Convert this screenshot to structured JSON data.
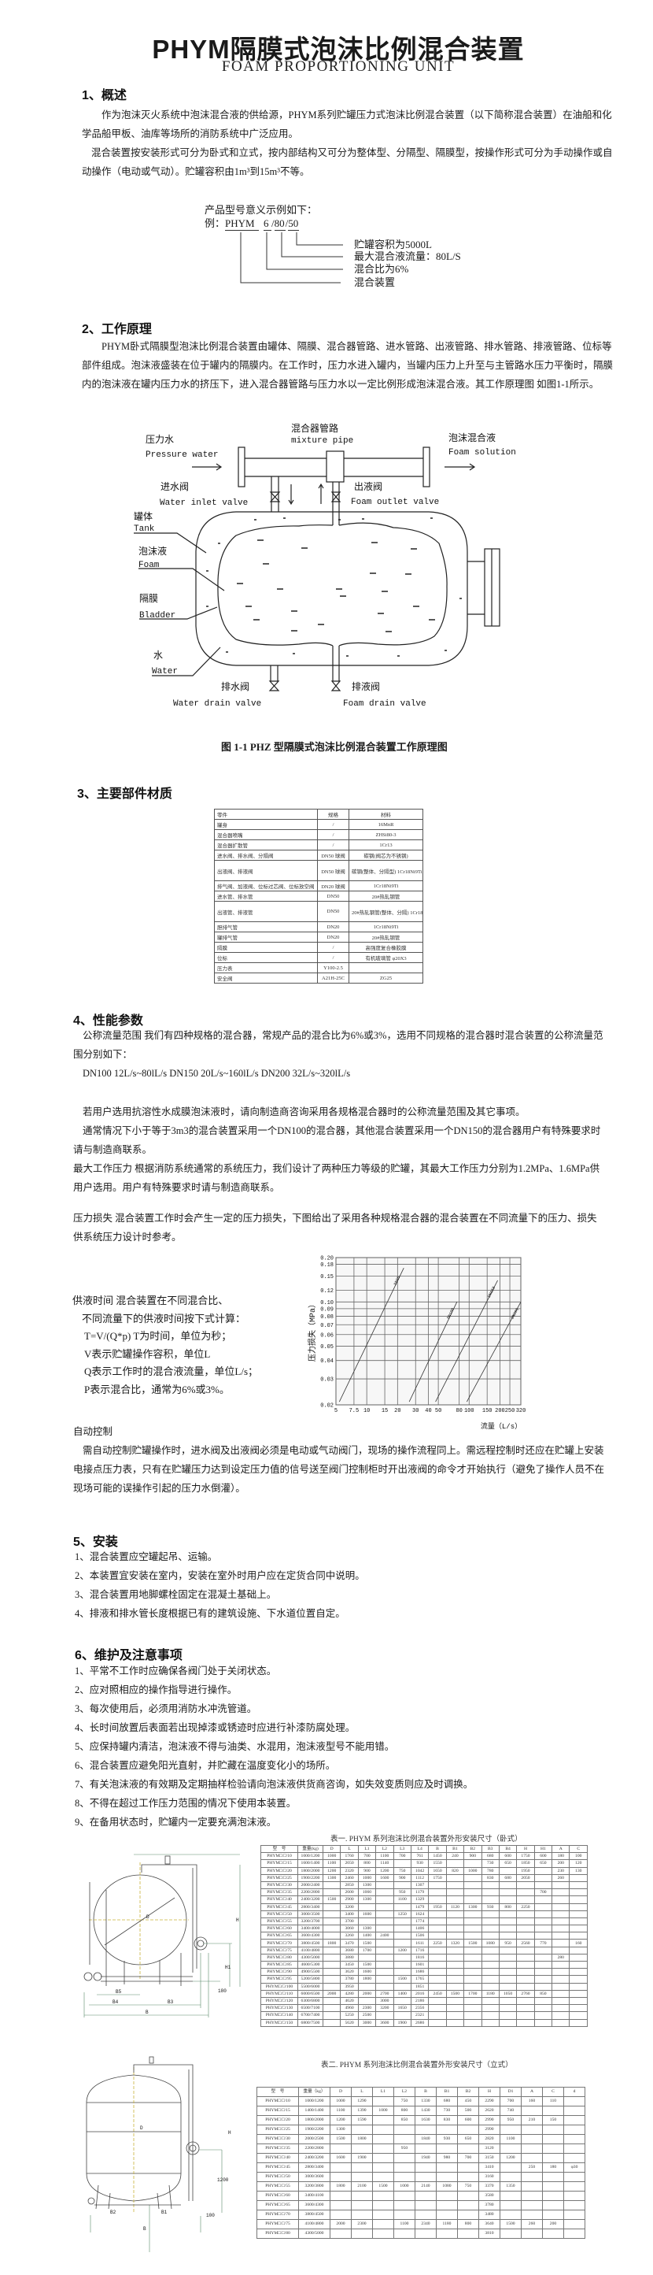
{
  "header": {
    "title": "PHYM隔膜式泡沫比例混合装置",
    "subtitle": "FOAM PROPORTIONING UNIT"
  },
  "s1": {
    "heading": "1、概述",
    "lines": [
      "作为泡沫灭火系统中泡沫混合液的供给源，PHYM系列贮罐压力式泡沫比例混合装置（以下简称混合装置）在油船和化",
      "学品船甲板、油库等场所的消防系统中广泛应用。",
      "混合装置按安装形式可分为卧式和立式，按内部结构又可分为整体型、分隔型、隔膜型，按操作形式可分为手动操作或自",
      "动操作（电动或气动）。贮罐容积由1m³到15m³不等。"
    ],
    "model": {
      "intro": "产品型号意义示例如下：",
      "example_prefix": "例：",
      "code_parts": [
        "PHYM",
        "6",
        "80",
        "50"
      ],
      "meanings": [
        "贮罐容积为5000L",
        "最大混合液流量：80L/S",
        "混合比为6%",
        "混合装置"
      ]
    }
  },
  "s2": {
    "heading": "2、工作原理",
    "lines": [
      "PHYM卧式隔膜型泡沫比例混合装置由罐体、隔膜、混合器管路、进水管路、出液管路、排水管路、排液管路、位标等",
      "部件组成。泡沫液盛装在位于罐内的隔膜内。在工作时，压力水进入罐内，当罐内压力上升至与主管路水压力平衡时，隔膜",
      "内的泡沫液在罐内压力水的挤压下，进入混合器管路与压力水以一定比例形成泡沫混合液。其工作原理图 如图1-1所示。"
    ],
    "diagram": {
      "mixture_pipe_cn": "混合器管路",
      "mixture_pipe_en": "mixture pipe",
      "pressure_water_cn": "压力水",
      "pressure_water_en": "Pressure water",
      "foam_solution_cn": "泡沫混合液",
      "foam_solution_en": "Foam solution",
      "inlet_valve_cn": "进水阀",
      "inlet_valve_en": "Water inlet valve",
      "outlet_valve_cn": "出液阀",
      "outlet_valve_en": "Foam outlet valve",
      "tank_cn": "罐体",
      "tank_en": "Tank",
      "foam_cn": "泡沫液",
      "foam_en": "Foam",
      "bladder_cn": "隔膜",
      "bladder_en": "Bladder",
      "water_cn": "水",
      "water_en": "Water",
      "water_drain_cn": "排水阀",
      "water_drain_en": "Water drain valve",
      "foam_drain_cn": "排液阀",
      "foam_drain_en": "Foam drain valve",
      "caption": "图 1-1 PHZ 型隔膜式泡沫比例混合装置工作原理图"
    }
  },
  "s3": {
    "heading": "3、主要部件材质",
    "table": [
      [
        "零件",
        "规格",
        "材料"
      ],
      [
        "罐身",
        "/",
        "16MnR"
      ],
      [
        "混合器喷嘴",
        "/",
        "ZHSi80-3"
      ],
      [
        "混合器扩散管",
        "/",
        "1Cr13"
      ],
      [
        "进水阀、排水阀、分隔阀",
        "DN50 球阀",
        "碳钢(阀芯为不锈钢)"
      ],
      [
        "出液阀、排液阀",
        "DN50 球阀",
        "碳钢(整体、分隔型) 1Cr18Ni9Ti"
      ],
      [
        "排气阀、加液阀、位标过芯阀、位标放空阀",
        "DN20 球阀",
        "1Cr18Ni9Ti"
      ],
      [
        "进水管、排水管",
        "DN50",
        "20#热轧钢管"
      ],
      [
        "出液管、排液管",
        "DN50",
        "20#热轧钢管(整体、分隔) 1Cr18Ni9Ti(隔膜型)"
      ],
      [
        "胆排气管",
        "DN20",
        "1Cr18Ni9Ti"
      ],
      [
        "罐排气管",
        "DN20",
        "20#热轧钢管"
      ],
      [
        "隔膜",
        "/",
        "高强度复合橡胶膜"
      ],
      [
        "位标",
        "/",
        "有机玻璃管 φ20X3"
      ],
      [
        "压力表",
        "Y100-2.5",
        ""
      ],
      [
        "安全阀",
        "A21H-25C",
        "ZG25"
      ]
    ]
  },
  "s4": {
    "heading": "4、性能参数",
    "flow_lines": [
      "公称流量范围  我们有四种规格的混合器，常规产品的混合比为6%或3%，选用不同规格的混合器时混合装置的公称流量范",
      "围分别如下：",
      "DN100  12L/s~80lL/s   DN150  20L/s~160lL/s   DN200  32L/s~320lL/s"
    ],
    "note_lines": [
      "若用户选用抗溶性水成膜泡沫液时，请向制造商咨询采用各规格混合器时的公称流量范围及其它事项。",
      "通常情况下小于等于3m3的混合装置采用一个DN100的混合器，其他混合装置采用一个DN150的混合器用户有特殊要求时",
      "请与制造商联系。",
      "最大工作压力 根据消防系统通常的系统压力，我们设计了两种压力等级的贮罐，其最大工作压力分别为1.2MPa、1.6MPa供",
      "用户选用。用户有特殊要求时请与制造商联系。"
    ],
    "loss_lines": [
      "压力损失  混合装置工作时会产生一定的压力损失，下图给出了采用各种规格混合器的混合装置在不同流量下的压力、损失",
      "供系统压力设计时参考。"
    ],
    "supply_lines": [
      "供液时间   混合装置在不同混合比、",
      "不同流量下的供液时间按下式计算：",
      "T=V/(Q*p)      T为时间，单位为秒；",
      "V表示贮罐操作容积，单位L",
      "Q表示工作时的混合液流量，单位L/s；",
      "P表示混合比，通常为6%或3%。"
    ],
    "auto_lines": [
      "自动控制",
      "需自动控制贮罐操作时，进水阀及出液阀必须是电动或气动阀门，现场的操作流程同上。需远程控制时还应在贮罐上安装",
      "电接点压力表，只有在贮罐压力达到设定压力值的信号送至阀门控制柜时开出液阀的命令才开始执行（避免了操作人员不在",
      "现场可能的误操作引起的压力水倒灌）。"
    ]
  },
  "chart_data": {
    "type": "line",
    "xlabel": "流量（L/s）",
    "ylabel": "压力损失（MPa）",
    "xscale": "log",
    "yscale": "log",
    "xlim": [
      5,
      320
    ],
    "ylim": [
      0.02,
      0.2
    ],
    "x_ticks": [
      5,
      7.5,
      10,
      15,
      20,
      30,
      40,
      50,
      80,
      100,
      150,
      200,
      250,
      320
    ],
    "x_tick_labels": [
      "5",
      "7.5",
      "10",
      "15",
      "20",
      "30",
      "40",
      "50",
      "80",
      "100",
      "150",
      "200",
      "250",
      "320"
    ],
    "y_ticks": [
      0.02,
      0.03,
      0.04,
      0.05,
      0.06,
      0.07,
      0.08,
      0.09,
      0.1,
      0.12,
      0.15,
      0.18,
      0.2
    ],
    "y_tick_labels": [
      "0.02",
      "0.03",
      "0.04",
      "0.05",
      "0.06",
      "0.07",
      "0.08",
      "0.09",
      "0.10",
      "0.12",
      "0.15",
      "0.18",
      "0.20"
    ],
    "grid": true,
    "series": [
      {
        "name": "DN65",
        "points": [
          [
            5.4,
            0.021
          ],
          [
            23,
            0.17
          ]
        ]
      },
      {
        "name": "DN100",
        "points": [
          [
            26,
            0.021
          ],
          [
            76,
            0.1
          ]
        ]
      },
      {
        "name": "DN150",
        "points": [
          [
            47,
            0.021
          ],
          [
            190,
            0.14
          ]
        ]
      },
      {
        "name": "DN200",
        "points": [
          [
            95,
            0.021
          ],
          [
            320,
            0.1
          ]
        ]
      }
    ]
  },
  "s5": {
    "heading": "5、安装",
    "items": [
      "1、混合装置应空罐起吊、运输。",
      "2、本装置宜安装在室内，安装在室外时用户应在定货合同中说明。",
      "3、混合装置用地脚螺栓固定在混凝土基础上。",
      "4、排液和排水管长度根据已有的建筑设施、下水道位置自定。"
    ]
  },
  "s6": {
    "heading": "6、维护及注意事项",
    "items": [
      "1、平常不工作时应确保各阀门处于关闭状态。",
      "2、应对照相应的操作指导进行操作。",
      "3、每次使用后，必须用消防水冲洗管道。",
      "4、长时间放置后表面若出现掉漆或锈迹时应进行补漆防腐处理。",
      "5、应保持罐内清洁，泡沫液不得与油类、水混用，泡沫液型号不能用错。",
      "6、混合装置应避免阳光直射，并贮藏在温度变化小的场所。",
      "7、有关泡沫液的有效期及定期抽样检验请向泡沫液供货商咨询，如失效变质则应及时调换。",
      "8、不得在超过工作压力范围的情况下使用本装置。",
      "9、在备用状态时，贮罐内一定要充满泡沫液。"
    ]
  },
  "drawings": {
    "horizontal": {
      "D": "D",
      "H": "H",
      "H1": "H1",
      "B": "B",
      "B3": "B3",
      "B4": "B4",
      "B5": "B5",
      "base": "180"
    },
    "vertical": {
      "D": "D",
      "H": "H",
      "H1": "1200",
      "B": "B",
      "B1": "B1",
      "B2": "B2",
      "base": "100"
    }
  },
  "table1": {
    "caption": "表一. PHYM 系列泡沫比例混合装置外形安装尺寸（卧式）",
    "header": [
      "型　号",
      "重量(kg)",
      "D",
      "L",
      "L1",
      "L2",
      "L3",
      "L4",
      "B",
      "B1",
      "B2",
      "B3",
      "B4",
      "H",
      "H1",
      "A",
      "C"
    ],
    "rows": [
      [
        "PHYM□/□/10",
        "1000/1200",
        "1000",
        "1760",
        "700",
        "1100",
        "700",
        "761",
        "1450",
        "240",
        "900",
        "680",
        "600",
        "1750",
        "600",
        "180",
        "100"
      ],
      [
        "PHYM□/□/15",
        "1600/1400",
        "1100",
        "2050",
        "800",
        "1140",
        "",
        "930",
        "1550",
        "",
        "",
        "730",
        "650",
        "1850",
        "650",
        "200",
        "120"
      ],
      [
        "PHYM□/□/20",
        "1800/2000",
        "1200",
        "2320",
        "900",
        "1200",
        "750",
        "1042",
        "1650",
        "820",
        "1000",
        "780",
        "",
        "1950",
        "",
        "230",
        "130"
      ],
      [
        "PHYM□/□/25",
        "1900/2200",
        "1300",
        "2460",
        "1000",
        "1600",
        "900",
        "1112",
        "1750",
        "",
        "",
        "830",
        "680",
        "2050",
        "",
        "260",
        ""
      ],
      [
        "PHYM□/□/30",
        "2000/2400",
        "",
        "2850",
        "1300",
        "",
        "",
        "1307",
        "",
        "",
        "",
        "",
        "",
        "",
        "",
        "",
        ""
      ],
      [
        "PHYM□/□/35",
        "2200/2800",
        "",
        "2600",
        "1060",
        "",
        "950",
        "1179",
        "",
        "",
        "",
        "",
        "",
        "",
        "700",
        "",
        ""
      ],
      [
        "PHYM□/□/40",
        "2400/3200",
        "1500",
        "2900",
        "1300",
        "",
        "1100",
        "1329",
        "",
        "",
        "",
        "",
        "",
        "",
        "",
        "",
        ""
      ],
      [
        "PHYM□/□/45",
        "2800/3400",
        "",
        "3200",
        "",
        "",
        "",
        "1479",
        "1950",
        "1120",
        "1300",
        "930",
        "800",
        "2250",
        "",
        "",
        ""
      ],
      [
        "PHYM□/□/50",
        "3000/3500",
        "",
        "3400",
        "1600",
        "",
        "1250",
        "1624",
        "",
        "",
        "",
        "",
        "",
        "",
        "",
        "",
        ""
      ],
      [
        "PHYM□/□/55",
        "3200/3700",
        "",
        "3700",
        "",
        "",
        "",
        "1774",
        "",
        "",
        "",
        "",
        "",
        "",
        "",
        "",
        ""
      ],
      [
        "PHYM□/□/60",
        "3400/4000",
        "",
        "3060",
        "1300",
        "",
        "",
        "1406",
        "",
        "",
        "",
        "",
        "",
        "",
        "",
        "",
        ""
      ],
      [
        "PHYM□/□/65",
        "3600/4300",
        "",
        "3260",
        "1400",
        "2400",
        "",
        "1506",
        "",
        "",
        "",
        "",
        "",
        "",
        "",
        "",
        ""
      ],
      [
        "PHYM□/□/70",
        "3800/4500",
        "1800",
        "3470",
        "1500",
        "",
        "",
        "1611",
        "2250",
        "1320",
        "1500",
        "1080",
        "950",
        "2560",
        "770",
        "",
        "160"
      ],
      [
        "PHYM□/□/75",
        "4100/4800",
        "",
        "3680",
        "1700",
        "",
        "1200",
        "1716",
        "",
        "",
        "",
        "",
        "",
        "",
        "",
        "",
        ""
      ],
      [
        "PHYM□/□/80",
        "4300/5000",
        "",
        "3880",
        "",
        "",
        "",
        "1816",
        "",
        "",
        "",
        "",
        "",
        "",
        "",
        "280",
        ""
      ],
      [
        "PHYM□/□/85",
        "4600/5300",
        "",
        "3450",
        "1500",
        "",
        "",
        "1601",
        "",
        "",
        "",
        "",
        "",
        "",
        "",
        "",
        ""
      ],
      [
        "PHYM□/□/90",
        "4900/5500",
        "",
        "3620",
        "1600",
        "",
        "",
        "1686",
        "",
        "",
        "",
        "",
        "",
        "",
        "",
        "",
        ""
      ],
      [
        "PHYM□/□/95",
        "5200/5800",
        "",
        "3780",
        "1800",
        "",
        "1500",
        "1765",
        "",
        "",
        "",
        "",
        "",
        "",
        "",
        "",
        ""
      ],
      [
        "PHYM□/□/100",
        "5500/6000",
        "",
        "3950",
        "",
        "",
        "",
        "1851",
        "",
        "",
        "",
        "",
        "",
        "",
        "",
        "",
        ""
      ],
      [
        "PHYM□/□/110",
        "6000/6500",
        "2000",
        "4280",
        "2000",
        "2700",
        "1400",
        "2016",
        "2450",
        "1500",
        "1700",
        "1180",
        "1050",
        "2760",
        "850",
        "",
        ""
      ],
      [
        "PHYM□/□/120",
        "6300/6800",
        "",
        "4620",
        "",
        "3000",
        "",
        "2186",
        "",
        "",
        "",
        "",
        "",
        "",
        "",
        "",
        ""
      ],
      [
        "PHYM□/□/130",
        "6500/7100",
        "",
        "4960",
        "2300",
        "3200",
        "1650",
        "2356",
        "",
        "",
        "",
        "",
        "",
        "",
        "",
        "",
        ""
      ],
      [
        "PHYM□/□/140",
        "6700/7400",
        "",
        "5250",
        "2500",
        "",
        "",
        "2321",
        "",
        "",
        "",
        "",
        "",
        "",
        "",
        "",
        ""
      ],
      [
        "PHYM□/□/150",
        "6800/7500",
        "",
        "5620",
        "3000",
        "3600",
        "1900",
        "2686",
        "",
        "",
        "",
        "",
        "",
        "",
        "",
        "",
        ""
      ]
    ]
  },
  "table2": {
    "caption": "表二. PHYM 系列泡沫比例混合装置外形安装尺寸（立式）",
    "header": [
      "型　号",
      "重量（kg）",
      "D",
      "L",
      "L1",
      "L2",
      "B",
      "B1",
      "B2",
      "H",
      "D1",
      "A",
      "C",
      "d"
    ],
    "rows": [
      [
        "PHYM□/□/10",
        "1000/1200",
        "1000",
        "1290",
        "",
        "750",
        "1330",
        "680",
        "450",
        "2290",
        "700",
        "160",
        "110",
        ""
      ],
      [
        "PHYM□/□/15",
        "1400/1400",
        "1100",
        "1390",
        "1000",
        "800",
        "1430",
        "730",
        "500",
        "2620",
        "740",
        "",
        "",
        ""
      ],
      [
        "PHYM□/□/20",
        "1800/2000",
        "1200",
        "1590",
        "",
        "850",
        "1630",
        "830",
        "600",
        "2990",
        "950",
        "210",
        "150",
        ""
      ],
      [
        "PHYM□/□/25",
        "1900/2200",
        "1300",
        "",
        "",
        "",
        "",
        "",
        "",
        "2990",
        "",
        "",
        "",
        ""
      ],
      [
        "PHYM□/□/30",
        "2000/2500",
        "1500",
        "1800",
        "",
        "",
        "1840",
        "930",
        "650",
        "2820",
        "1100",
        "",
        "",
        ""
      ],
      [
        "PHYM□/□/35",
        "2200/2800",
        "",
        "",
        "",
        "950",
        "",
        "",
        "",
        "3120",
        "",
        "",
        "",
        ""
      ],
      [
        "PHYM□/□/40",
        "2400/3200",
        "1600",
        "1900",
        "",
        "",
        "1940",
        "980",
        "700",
        "3150",
        "1200",
        "",
        "",
        ""
      ],
      [
        "PHYM□/□/45",
        "2800/3400",
        "",
        "",
        "",
        "",
        "",
        "",
        "",
        "3410",
        "",
        "250",
        "180",
        "φ30"
      ],
      [
        "PHYM□/□/50",
        "3000/3600",
        "",
        "",
        "",
        "",
        "",
        "",
        "",
        "3160",
        "",
        "",
        "",
        ""
      ],
      [
        "PHYM□/□/55",
        "3200/3800",
        "1800",
        "2100",
        "1500",
        "1000",
        "2140",
        "1080",
        "750",
        "3370",
        "1350",
        "",
        "",
        ""
      ],
      [
        "PHYM□/□/60",
        "3400/4100",
        "",
        "",
        "",
        "",
        "",
        "",
        "",
        "3580",
        "",
        "",
        "",
        ""
      ],
      [
        "PHYM□/□/65",
        "3600/4300",
        "",
        "",
        "",
        "",
        "",
        "",
        "",
        "3780",
        "",
        "",
        "",
        ""
      ],
      [
        "PHYM□/□/70",
        "3800/4500",
        "",
        "",
        "",
        "",
        "",
        "",
        "",
        "3480",
        "",
        "",
        "",
        ""
      ],
      [
        "PHYM□/□/75",
        "4100/4800",
        "2000",
        "2300",
        "",
        "1100",
        "2340",
        "1180",
        "800",
        "3640",
        "1500",
        "260",
        "200",
        ""
      ],
      [
        "PHYM□/□/80",
        "4300/5000",
        "",
        "",
        "",
        "",
        "",
        "",
        "",
        "3810",
        "",
        "",
        "",
        ""
      ]
    ]
  }
}
